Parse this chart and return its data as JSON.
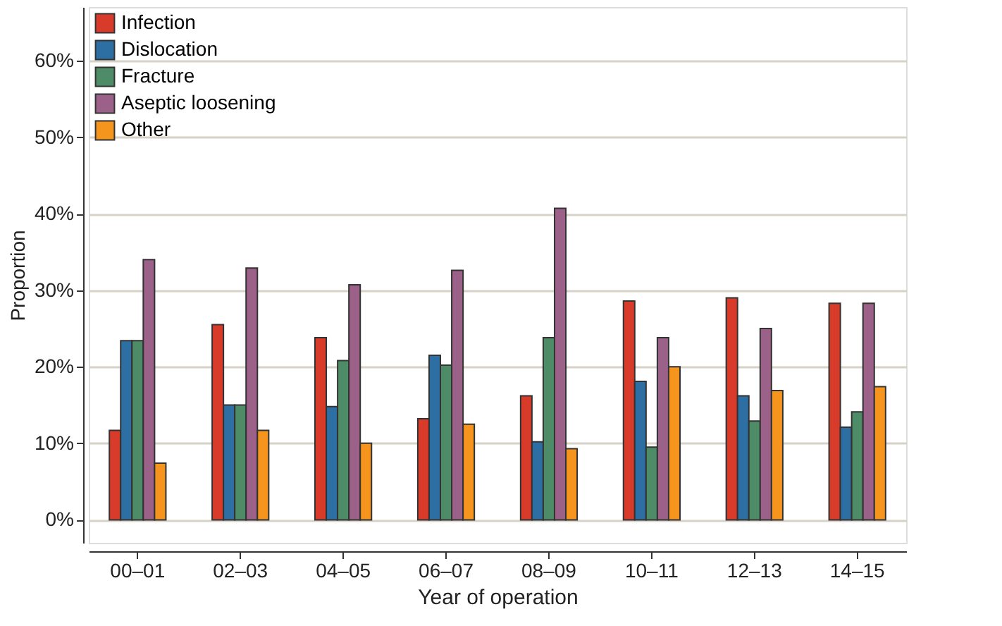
{
  "chart_data": {
    "type": "bar",
    "xlabel": "Year of operation",
    "ylabel": "Proportion",
    "categories": [
      "00–01",
      "02–03",
      "04–05",
      "06–07",
      "08–09",
      "10–11",
      "12–13",
      "14–15"
    ],
    "series": [
      {
        "name": "Infection",
        "color": "#d93b2b",
        "values": [
          11.7,
          25.5,
          23.8,
          13.2,
          16.2,
          28.6,
          29.0,
          28.3
        ]
      },
      {
        "name": "Dislocation",
        "color": "#2e6fa3",
        "values": [
          23.4,
          15.0,
          14.8,
          21.5,
          10.2,
          18.1,
          16.2,
          12.1
        ]
      },
      {
        "name": "Fracture",
        "color": "#4e8c68",
        "values": [
          23.4,
          15.0,
          20.8,
          20.2,
          23.8,
          9.5,
          12.9,
          14.1
        ]
      },
      {
        "name": "Aseptic loosening",
        "color": "#9b6189",
        "values": [
          34.0,
          32.9,
          30.7,
          32.6,
          40.7,
          23.8,
          25.0,
          28.3
        ]
      },
      {
        "name": "Other",
        "color": "#f5951d",
        "values": [
          7.4,
          11.7,
          10.0,
          12.5,
          9.3,
          20.0,
          16.9,
          17.4
        ]
      }
    ],
    "ylim": [
      -3,
      67
    ],
    "yticks": [
      {
        "value": 0,
        "label": "0%"
      },
      {
        "value": 10,
        "label": "10%"
      },
      {
        "value": 20,
        "label": "20%"
      },
      {
        "value": 30,
        "label": "30%"
      },
      {
        "value": 40,
        "label": "40%"
      },
      {
        "value": 50,
        "label": "50%"
      },
      {
        "value": 60,
        "label": "60%"
      }
    ],
    "grid": "y",
    "legend": "top left"
  }
}
